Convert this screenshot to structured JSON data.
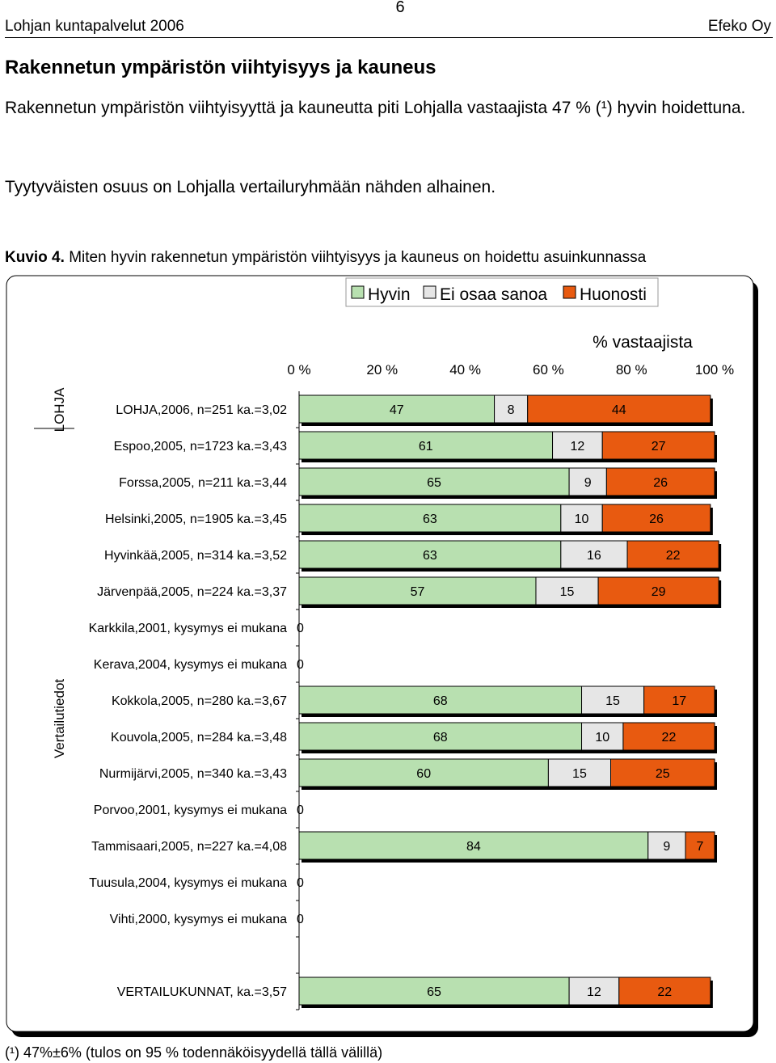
{
  "header": {
    "left": "Lohjan kuntapalvelut 2006",
    "page_number": "6",
    "right": "Efeko Oy"
  },
  "section_title": "Rakennetun ympäristön viihtyisyys ja kauneus",
  "paragraphs": [
    "Rakennetun ympäristön viihtyisyyttä ja kauneutta piti Lohjalla vastaajista 47 % (¹) hyvin hoidettuna.",
    "Tyytyväisten osuus on Lohjalla vertailuryhmään nähden alhainen."
  ],
  "caption": {
    "label": "Kuvio 4.",
    "text": "Miten hyvin rakennetun ympäristön viihtyisyys ja kauneus on hoidettu asuinkunnassa"
  },
  "footnote": "(¹) 47%±6% (tulos on 95 % todennäköisyydellä tällä välillä)",
  "colors": {
    "hyvin": "#b8e0b0",
    "ei_osaa_sanoa": "#e6e6e6",
    "huonosti": "#e85a10",
    "bar_edge": "#000000"
  },
  "chart_data": {
    "type": "bar",
    "orientation": "horizontal",
    "stacked": true,
    "percent": true,
    "title": "% vastaajista",
    "xlim": [
      0,
      100
    ],
    "xticks": [
      "0 %",
      "20 %",
      "40 %",
      "60 %",
      "80 %",
      "100 %"
    ],
    "legend": {
      "placement": "top-right",
      "entries": [
        "Hyvin",
        "Ei osaa sanoa",
        "Huonosti"
      ]
    },
    "group_labels": [
      "LOHJA",
      "Vertailutiedot"
    ],
    "categories": [
      "LOHJA,2006, n=251 ka.=3,02",
      "Espoo,2005, n=1723 ka.=3,43",
      "Forssa,2005, n=211 ka.=3,44",
      "Helsinki,2005, n=1905 ka.=3,45",
      "Hyvinkää,2005, n=314 ka.=3,52",
      "Järvenpää,2005, n=224 ka.=3,37",
      "Karkkila,2001, kysymys ei mukana",
      "Kerava,2004, kysymys ei mukana",
      "Kokkola,2005, n=280 ka.=3,67",
      "Kouvola,2005, n=284 ka.=3,48",
      "Nurmijärvi,2005, n=340 ka.=3,43",
      "Porvoo,2001, kysymys ei mukana",
      "Tammisaari,2005, n=227 ka.=4,08",
      "Tuusula,2004, kysymys ei mukana",
      "Vihti,2000, kysymys ei mukana",
      "",
      "VERTAILUKUNNAT, ka.=3,57"
    ],
    "series": [
      {
        "name": "Hyvin",
        "values": [
          47,
          61,
          65,
          63,
          63,
          57,
          0,
          0,
          68,
          68,
          60,
          0,
          84,
          0,
          0,
          null,
          65
        ]
      },
      {
        "name": "Ei osaa sanoa",
        "values": [
          8,
          12,
          9,
          10,
          16,
          15,
          null,
          null,
          15,
          10,
          15,
          null,
          9,
          null,
          null,
          null,
          12
        ]
      },
      {
        "name": "Huonosti",
        "values": [
          44,
          27,
          26,
          26,
          22,
          29,
          null,
          null,
          17,
          22,
          25,
          null,
          7,
          null,
          null,
          null,
          22
        ]
      }
    ]
  }
}
